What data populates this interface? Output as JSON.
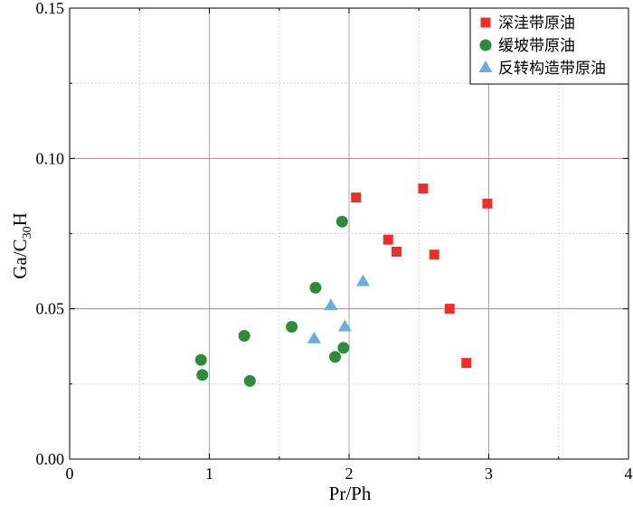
{
  "chart_data": {
    "type": "scatter",
    "xlabel": "Pr/Ph",
    "ylabel_main": "Ga/C",
    "ylabel_sub": "30",
    "ylabel_tail": "H",
    "xlim": [
      0,
      4
    ],
    "ylim": [
      0,
      0.15
    ],
    "x_ticks": [
      0,
      1,
      2,
      3,
      4
    ],
    "x_tick_labels": [
      "0",
      "1",
      "2",
      "3",
      "4"
    ],
    "y_ticks": [
      0,
      0.05,
      0.1,
      0.15
    ],
    "y_tick_labels": [
      "0.00",
      "0.05",
      "0.10",
      "0.15"
    ],
    "grid": true,
    "legend_position": "top-right",
    "series": [
      {
        "name": "深洼带原油",
        "marker": "square",
        "color": "#e8312a",
        "points": [
          {
            "x": 2.05,
            "y": 0.087
          },
          {
            "x": 2.53,
            "y": 0.09
          },
          {
            "x": 2.99,
            "y": 0.085
          },
          {
            "x": 2.28,
            "y": 0.073
          },
          {
            "x": 2.34,
            "y": 0.069
          },
          {
            "x": 2.61,
            "y": 0.068
          },
          {
            "x": 2.72,
            "y": 0.05
          },
          {
            "x": 2.84,
            "y": 0.032
          }
        ]
      },
      {
        "name": "缓坡带原油",
        "marker": "circle",
        "color": "#2e8b3a",
        "points": [
          {
            "x": 1.95,
            "y": 0.079
          },
          {
            "x": 1.76,
            "y": 0.057
          },
          {
            "x": 1.59,
            "y": 0.044
          },
          {
            "x": 1.25,
            "y": 0.041
          },
          {
            "x": 0.94,
            "y": 0.033
          },
          {
            "x": 0.95,
            "y": 0.028
          },
          {
            "x": 1.29,
            "y": 0.026
          },
          {
            "x": 1.96,
            "y": 0.037
          },
          {
            "x": 1.9,
            "y": 0.034
          }
        ]
      },
      {
        "name": "反转构造带原油",
        "marker": "triangle",
        "color": "#6aaee0",
        "points": [
          {
            "x": 2.1,
            "y": 0.059
          },
          {
            "x": 1.87,
            "y": 0.051
          },
          {
            "x": 1.97,
            "y": 0.044
          },
          {
            "x": 1.75,
            "y": 0.04
          }
        ]
      }
    ]
  }
}
